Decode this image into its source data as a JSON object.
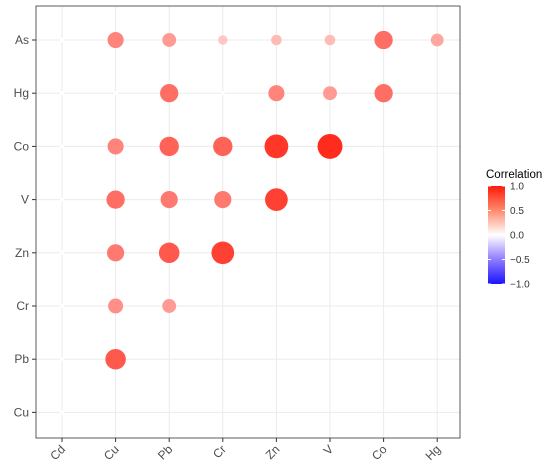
{
  "chart_data": {
    "type": "scatter",
    "subtype": "correlation-matrix",
    "x_categories": [
      "Cd",
      "Cu",
      "Pb",
      "Cr",
      "Zn",
      "V",
      "Co",
      "Hg"
    ],
    "y_categories": [
      "As",
      "Hg",
      "Co",
      "V",
      "Zn",
      "Cr",
      "Pb",
      "Cu"
    ],
    "points": [
      {
        "x": "Cd",
        "y": "As",
        "value": 0.0
      },
      {
        "x": "Cu",
        "y": "As",
        "value": 0.55
      },
      {
        "x": "Pb",
        "y": "As",
        "value": 0.45
      },
      {
        "x": "Cr",
        "y": "As",
        "value": 0.25
      },
      {
        "x": "Zn",
        "y": "As",
        "value": 0.3
      },
      {
        "x": "V",
        "y": "As",
        "value": 0.3
      },
      {
        "x": "Co",
        "y": "As",
        "value": 0.65
      },
      {
        "x": "Hg",
        "y": "As",
        "value": 0.4
      },
      {
        "x": "Cd",
        "y": "Hg",
        "value": 0.0
      },
      {
        "x": "Cu",
        "y": "Hg",
        "value": 0.0
      },
      {
        "x": "Pb",
        "y": "Hg",
        "value": 0.65
      },
      {
        "x": "Cr",
        "y": "Hg",
        "value": 0.0
      },
      {
        "x": "Zn",
        "y": "Hg",
        "value": 0.55
      },
      {
        "x": "V",
        "y": "Hg",
        "value": 0.45
      },
      {
        "x": "Co",
        "y": "Hg",
        "value": 0.65
      },
      {
        "x": "Cd",
        "y": "Co",
        "value": 0.0
      },
      {
        "x": "Cu",
        "y": "Co",
        "value": 0.55
      },
      {
        "x": "Pb",
        "y": "Co",
        "value": 0.7
      },
      {
        "x": "Cr",
        "y": "Co",
        "value": 0.7
      },
      {
        "x": "Zn",
        "y": "Co",
        "value": 0.9
      },
      {
        "x": "V",
        "y": "Co",
        "value": 0.95
      },
      {
        "x": "Cd",
        "y": "V",
        "value": 0.0
      },
      {
        "x": "Cu",
        "y": "V",
        "value": 0.65
      },
      {
        "x": "Pb",
        "y": "V",
        "value": 0.6
      },
      {
        "x": "Cr",
        "y": "V",
        "value": 0.6
      },
      {
        "x": "Zn",
        "y": "V",
        "value": 0.85
      },
      {
        "x": "Cd",
        "y": "Zn",
        "value": 0.0
      },
      {
        "x": "Cu",
        "y": "Zn",
        "value": 0.6
      },
      {
        "x": "Pb",
        "y": "Zn",
        "value": 0.75
      },
      {
        "x": "Cr",
        "y": "Zn",
        "value": 0.85
      },
      {
        "x": "Cd",
        "y": "Cr",
        "value": 0.0
      },
      {
        "x": "Cu",
        "y": "Cr",
        "value": 0.5
      },
      {
        "x": "Pb",
        "y": "Cr",
        "value": 0.45
      },
      {
        "x": "Cd",
        "y": "Pb",
        "value": 0.0
      },
      {
        "x": "Cu",
        "y": "Pb",
        "value": 0.75
      },
      {
        "x": "Cd",
        "y": "Cu",
        "value": 0.0
      }
    ],
    "legend": {
      "title": "Correlation",
      "ticks": [
        1.0,
        0.5,
        0.0,
        -0.5,
        -1.0
      ],
      "tick_labels": [
        "1.0",
        "0.5",
        "0.0",
        "−0.5",
        "−1.0"
      ],
      "placement": "right"
    },
    "color_scale": {
      "low": "#1f1fff",
      "mid": "#ffffff",
      "high": "#ff2010",
      "range": [
        -1,
        1
      ]
    },
    "grid": true
  }
}
